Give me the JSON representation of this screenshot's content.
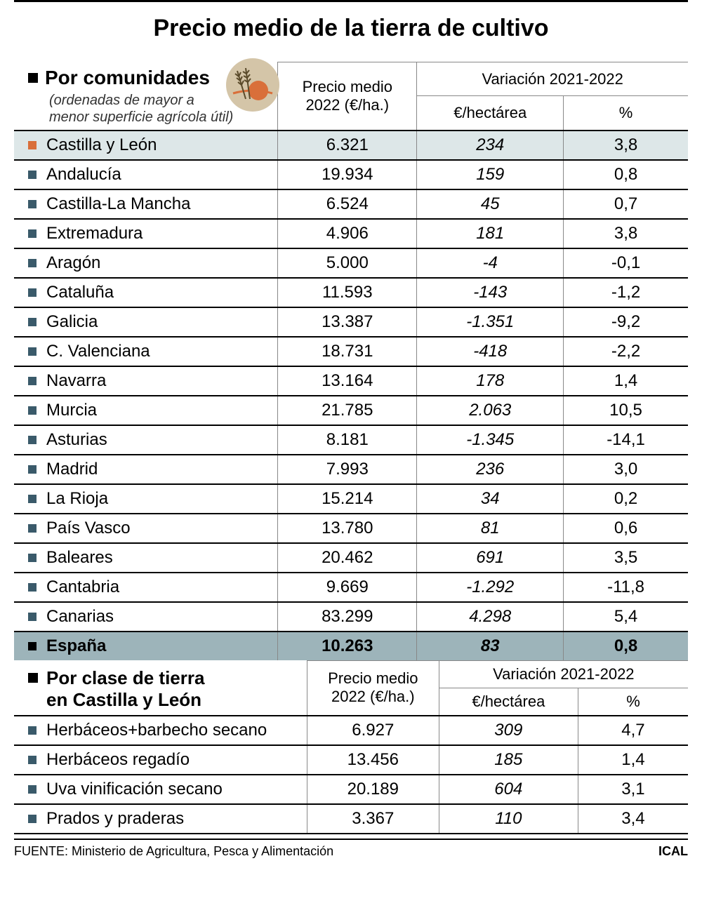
{
  "title": "Precio medio de la tierra de cultivo",
  "section1": {
    "heading": "Por comunidades",
    "subtitle_line1": "(ordenadas de mayor a",
    "subtitle_line2": "menor superficie agrícola útil)",
    "col_precio_line1": "Precio medio",
    "col_precio_line2": "2022 (€/ha.)",
    "col_var_top": "Variación 2021-2022",
    "col_var_eur": "€/hectárea",
    "col_var_pct": "%"
  },
  "rows1": [
    {
      "name": "Castilla y León",
      "precio": "6.321",
      "var_eur": "234",
      "var_pct": "3,8",
      "hl": "light",
      "bullet": "hl"
    },
    {
      "name": "Andalucía",
      "precio": "19.934",
      "var_eur": "159",
      "var_pct": "0,8"
    },
    {
      "name": "Castilla-La Mancha",
      "precio": "6.524",
      "var_eur": "45",
      "var_pct": "0,7"
    },
    {
      "name": "Extremadura",
      "precio": "4.906",
      "var_eur": "181",
      "var_pct": "3,8"
    },
    {
      "name": "Aragón",
      "precio": "5.000",
      "var_eur": "-4",
      "var_pct": "-0,1"
    },
    {
      "name": "Cataluña",
      "precio": "11.593",
      "var_eur": "-143",
      "var_pct": "-1,2"
    },
    {
      "name": "Galicia",
      "precio": "13.387",
      "var_eur": "-1.351",
      "var_pct": "-9,2"
    },
    {
      "name": "C. Valenciana",
      "precio": "18.731",
      "var_eur": "-418",
      "var_pct": "-2,2"
    },
    {
      "name": "Navarra",
      "precio": "13.164",
      "var_eur": "178",
      "var_pct": "1,4"
    },
    {
      "name": "Murcia",
      "precio": "21.785",
      "var_eur": "2.063",
      "var_pct": "10,5"
    },
    {
      "name": "Asturias",
      "precio": "8.181",
      "var_eur": "-1.345",
      "var_pct": "-14,1"
    },
    {
      "name": "Madrid",
      "precio": "7.993",
      "var_eur": "236",
      "var_pct": "3,0"
    },
    {
      "name": "La Rioja",
      "precio": "15.214",
      "var_eur": "34",
      "var_pct": "0,2"
    },
    {
      "name": "País Vasco",
      "precio": "13.780",
      "var_eur": "81",
      "var_pct": "0,6"
    },
    {
      "name": "Baleares",
      "precio": "20.462",
      "var_eur": "691",
      "var_pct": "3,5"
    },
    {
      "name": "Cantabria",
      "precio": "9.669",
      "var_eur": "-1.292",
      "var_pct": "-11,8"
    },
    {
      "name": "Canarias",
      "precio": "83.299",
      "var_eur": "4.298",
      "var_pct": "5,4"
    },
    {
      "name": "España",
      "precio": "10.263",
      "var_eur": "83",
      "var_pct": "0,8",
      "hl": "dark"
    }
  ],
  "section2": {
    "heading_line1": "Por clase de tierra",
    "heading_line2": "en Castilla y León",
    "col_precio_line1": "Precio medio",
    "col_precio_line2": "2022 (€/ha.)",
    "col_var_top": "Variación 2021-2022",
    "col_var_eur": "€/hectárea",
    "col_var_pct": "%"
  },
  "rows2": [
    {
      "name": "Herbáceos+barbecho secano",
      "precio": "6.927",
      "var_eur": "309",
      "var_pct": "4,7"
    },
    {
      "name": "Herbáceos regadío",
      "precio": "13.456",
      "var_eur": "185",
      "var_pct": "1,4"
    },
    {
      "name": "Uva vinificación secano",
      "precio": "20.189",
      "var_eur": "604",
      "var_pct": "3,1"
    },
    {
      "name": "Prados y praderas",
      "precio": "3.367",
      "var_eur": "110",
      "var_pct": "3,4"
    }
  ],
  "footer": {
    "source": "FUENTE: Ministerio de Agricultura, Pesca y Alimentación",
    "agency": "ICAL"
  },
  "colors": {
    "bullet_default": "#3a5a6a",
    "bullet_highlight": "#d96f3a",
    "row_light": "#dde7e8",
    "row_dark": "#9db4ba"
  }
}
